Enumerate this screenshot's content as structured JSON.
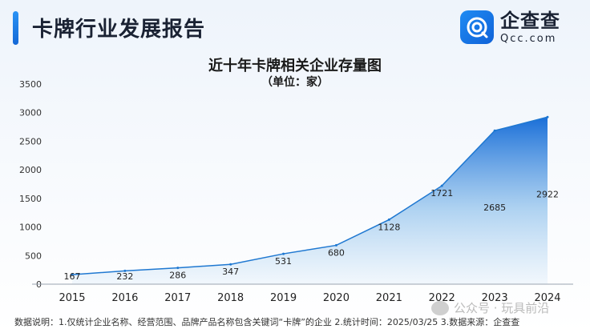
{
  "header": {
    "title": "卡牌行业发展报告"
  },
  "logo": {
    "name": "企查查",
    "sub": "Qcc.com"
  },
  "chart_data": {
    "type": "area",
    "title": "近十年卡牌相关企业存量图",
    "subtitle": "（单位：家）",
    "categories": [
      "2015",
      "2016",
      "2017",
      "2018",
      "2019",
      "2020",
      "2021",
      "2022",
      "2023",
      "2024"
    ],
    "values": [
      167,
      232,
      286,
      347,
      531,
      680,
      1128,
      1721,
      2685,
      2922
    ],
    "ylim": [
      0,
      3500
    ],
    "yticks": [
      0,
      500,
      1000,
      1500,
      2000,
      2500,
      3000,
      3500
    ],
    "grid": false,
    "colors": {
      "area_top": "#1a6fd8",
      "area_bottom": "#eaf3fb",
      "line": "#1f78d1"
    }
  },
  "footer": {
    "note": "数据说明：1.仅统计企业名称、经营范围、品牌产品名称包含关键词“卡牌”的企业   2.统计时间：2025/03/25   3.数据来源：企查查"
  },
  "watermark": {
    "text": "公众号 · 玩具前沿"
  }
}
